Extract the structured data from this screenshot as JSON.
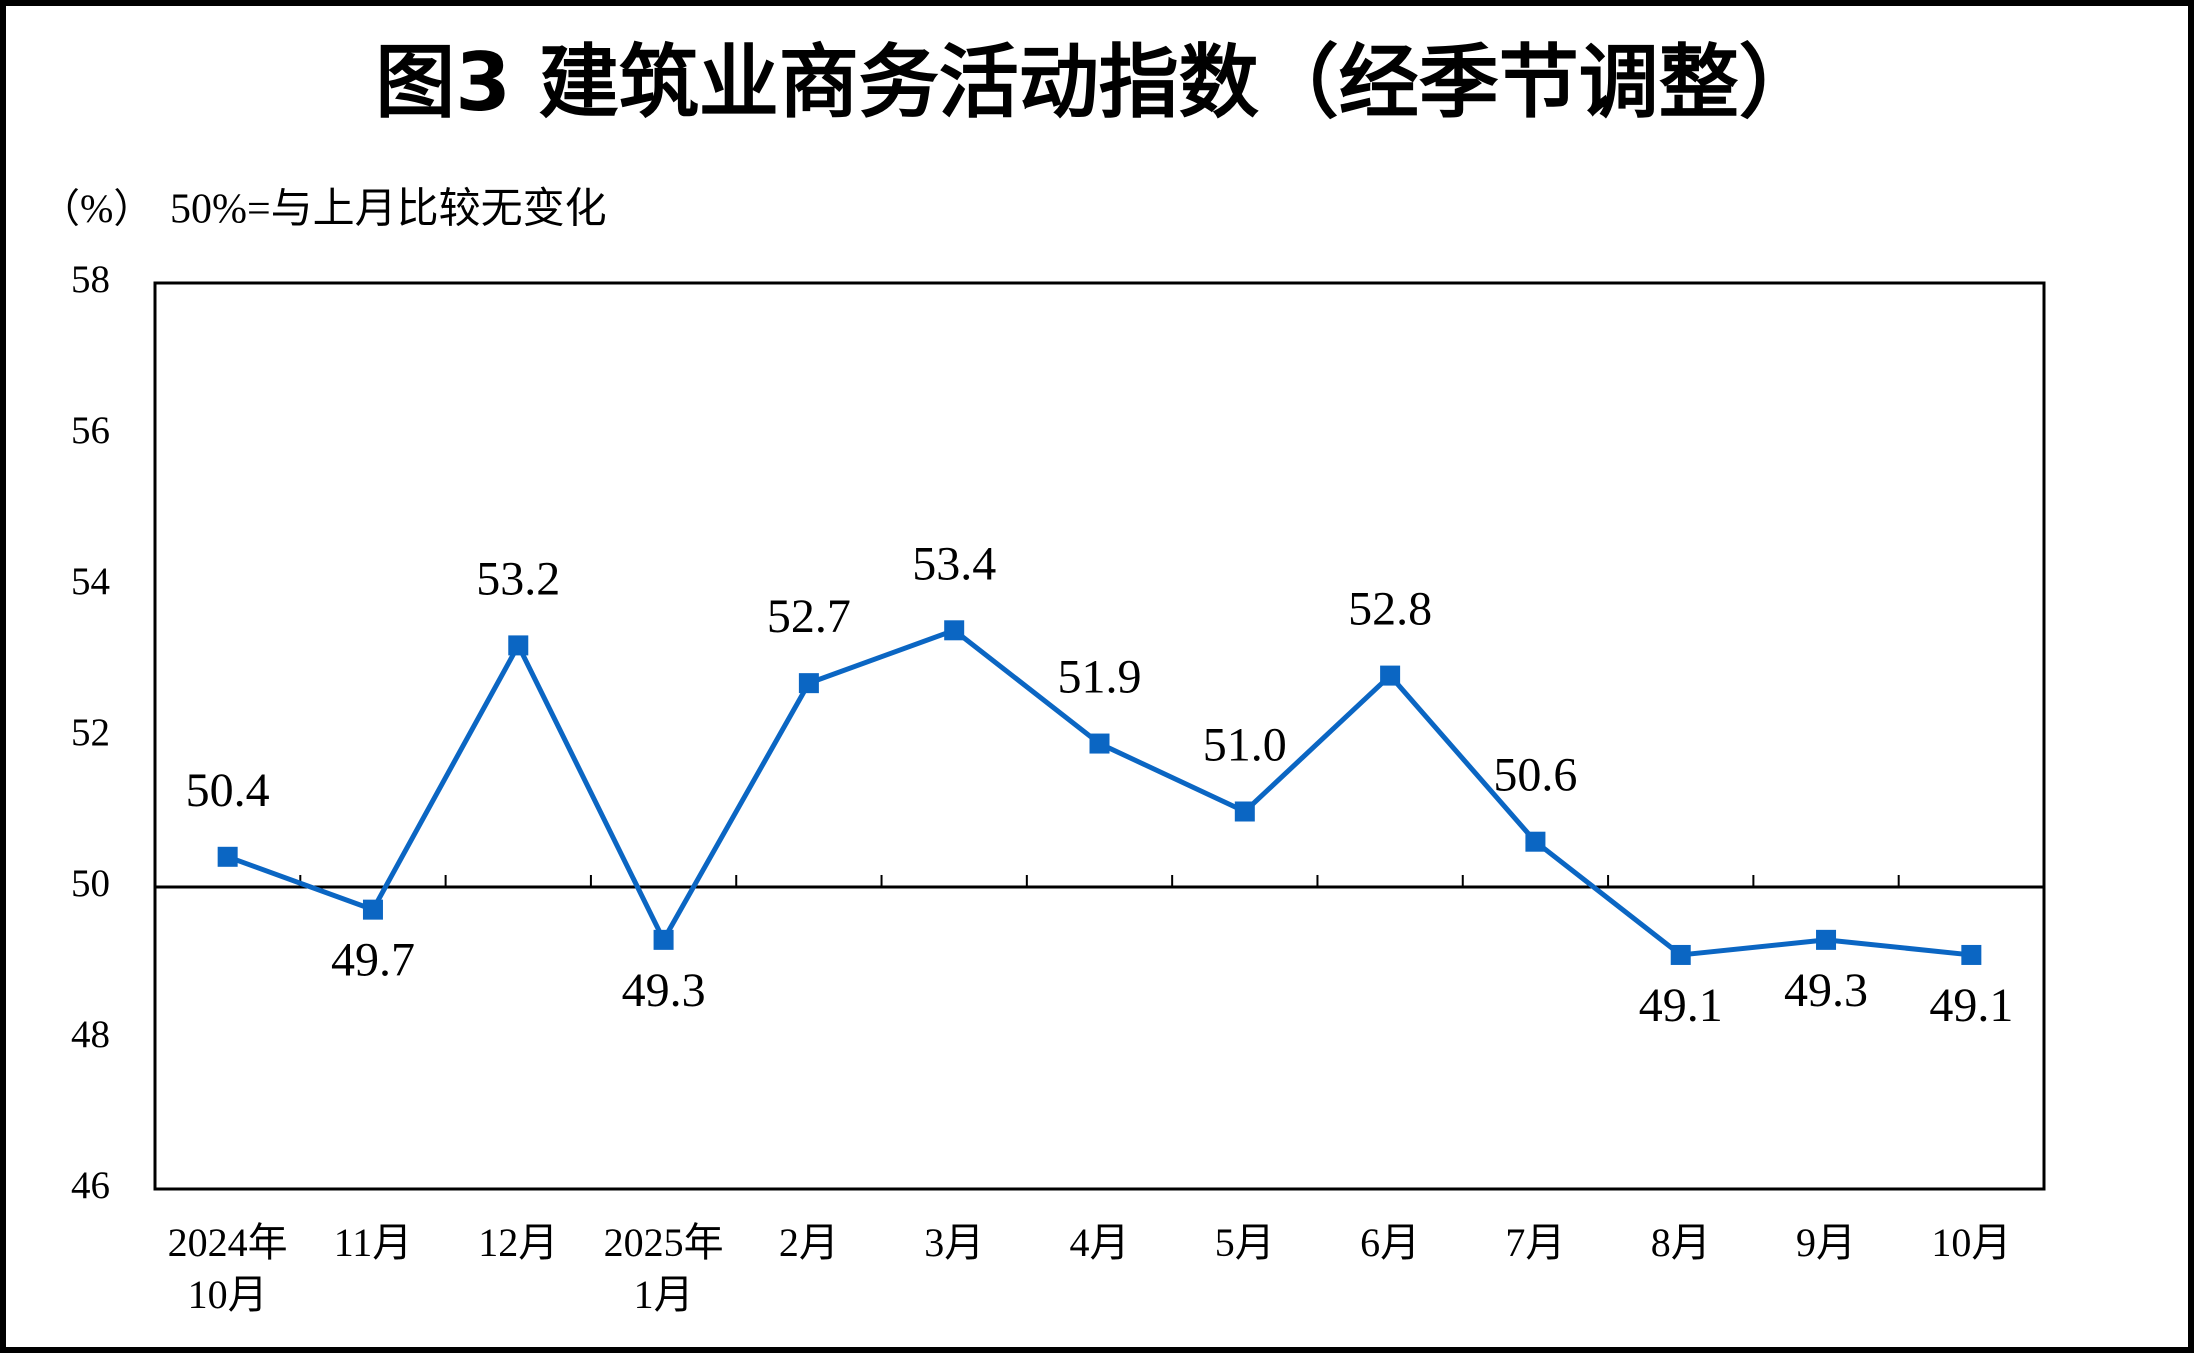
{
  "chart_data": {
    "type": "line",
    "title": "图3  建筑业商务活动指数（经季节调整）",
    "y_unit": "（%）",
    "note": "50%=与上月比较无变化",
    "categories": [
      "2024年\n10月",
      "11月",
      "12月",
      "2025年\n1月",
      "2月",
      "3月",
      "4月",
      "5月",
      "6月",
      "7月",
      "8月",
      "9月",
      "10月"
    ],
    "values": [
      50.4,
      49.7,
      53.2,
      49.3,
      52.7,
      53.4,
      51.9,
      51.0,
      52.8,
      50.6,
      49.1,
      49.3,
      49.1
    ],
    "value_labels": [
      "50.4",
      "49.7",
      "53.2",
      "49.3",
      "52.7",
      "53.4",
      "51.9",
      "51.0",
      "52.8",
      "50.6",
      "49.1",
      "49.3",
      "49.1"
    ],
    "color": "#0b66c3",
    "reference_line": 50,
    "ylim": [
      46,
      58
    ],
    "yticks": [
      46,
      48,
      50,
      52,
      54,
      56,
      58
    ]
  }
}
